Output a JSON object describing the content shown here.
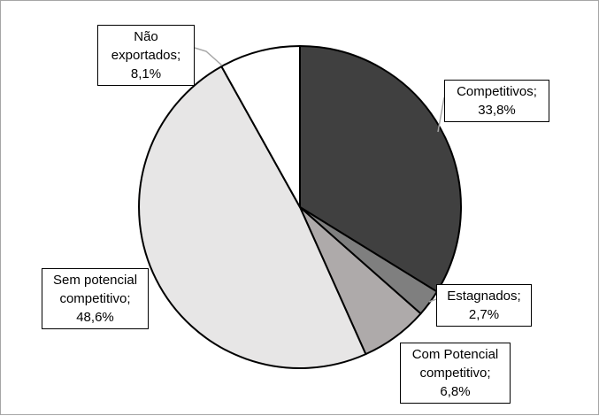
{
  "chart_data": {
    "type": "pie",
    "start_angle_deg": 0,
    "direction": "clockwise",
    "slices": [
      {
        "name": "Competitivos",
        "value": 33.8,
        "label": "33,8%",
        "color": "#404040"
      },
      {
        "name": "Estagnados",
        "value": 2.7,
        "label": "2,7%",
        "color": "#7f7f7f"
      },
      {
        "name": "Com Potencial competitivo",
        "value": 6.8,
        "label": "6,8%",
        "color": "#aeaaaa"
      },
      {
        "name": "Sem potencial competitivo",
        "value": 48.6,
        "label": "48,6%",
        "color": "#e7e6e6"
      },
      {
        "name": "Não exportados",
        "value": 8.1,
        "label": "8,1%",
        "color": "#ffffff"
      }
    ],
    "callouts": [
      {
        "lines": [
          "Competitivos;",
          "33,8%"
        ]
      },
      {
        "lines": [
          "Estagnados;",
          "2,7%"
        ]
      },
      {
        "lines": [
          "Com Potencial",
          "competitivo;",
          "6,8%"
        ]
      },
      {
        "lines": [
          "Sem potencial",
          "competitivo;",
          "48,6%"
        ]
      },
      {
        "lines": [
          "Não",
          "exportados;",
          "8,1%"
        ]
      }
    ],
    "legend": "none"
  }
}
